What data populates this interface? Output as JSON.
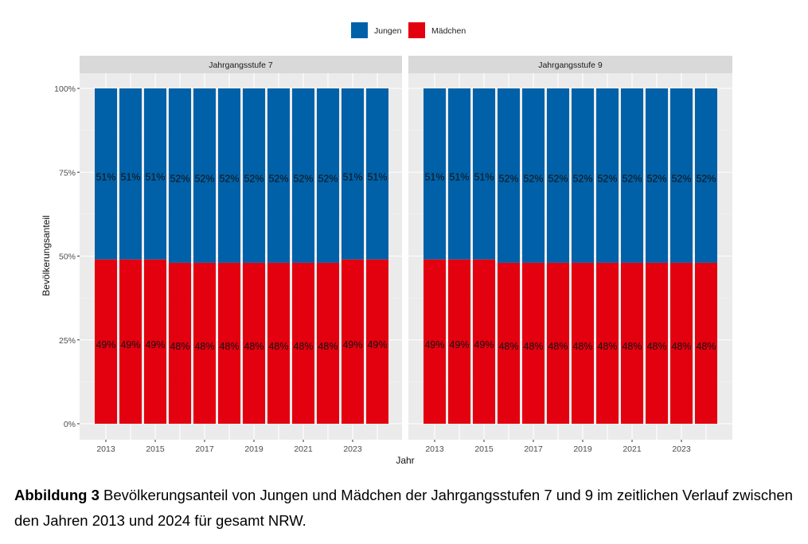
{
  "chart_data": {
    "type": "bar",
    "stacked": true,
    "xlabel": "Jahr",
    "ylabel": "Bevölkerungsanteil",
    "ylim": [
      0,
      100
    ],
    "yticks": [
      "0%",
      "25%",
      "50%",
      "75%",
      "100%"
    ],
    "xticks": [
      "2013",
      "2015",
      "2017",
      "2019",
      "2021",
      "2023"
    ],
    "categories": [
      2013,
      2014,
      2015,
      2016,
      2017,
      2018,
      2019,
      2020,
      2021,
      2022,
      2023,
      2024
    ],
    "legend": {
      "placement": "top",
      "entries": [
        {
          "name": "Jungen",
          "color": "#0061A8"
        },
        {
          "name": "Mädchen",
          "color": "#E3000F"
        }
      ]
    },
    "grid": true,
    "panels": [
      {
        "title": "Jahrgangsstufe 7",
        "series": [
          {
            "name": "Mädchen",
            "values": [
              49,
              49,
              49,
              48,
              48,
              48,
              48,
              48,
              48,
              48,
              49,
              49
            ],
            "labels": [
              "49%",
              "49%",
              "49%",
              "48%",
              "48%",
              "48%",
              "48%",
              "48%",
              "48%",
              "48%",
              "49%",
              "49%"
            ]
          },
          {
            "name": "Jungen",
            "values": [
              51,
              51,
              51,
              52,
              52,
              52,
              52,
              52,
              52,
              52,
              51,
              51
            ],
            "labels": [
              "51%",
              "51%",
              "51%",
              "52%",
              "52%",
              "52%",
              "52%",
              "52%",
              "52%",
              "52%",
              "51%",
              "51%"
            ]
          }
        ]
      },
      {
        "title": "Jahrgangsstufe 9",
        "series": [
          {
            "name": "Mädchen",
            "values": [
              49,
              49,
              49,
              48,
              48,
              48,
              48,
              48,
              48,
              48,
              48,
              48
            ],
            "labels": [
              "49%",
              "49%",
              "49%",
              "48%",
              "48%",
              "48%",
              "48%",
              "48%",
              "48%",
              "48%",
              "48%",
              "48%"
            ]
          },
          {
            "name": "Jungen",
            "values": [
              51,
              51,
              51,
              52,
              52,
              52,
              52,
              52,
              52,
              52,
              52,
              52
            ],
            "labels": [
              "51%",
              "51%",
              "51%",
              "52%",
              "52%",
              "52%",
              "52%",
              "52%",
              "52%",
              "52%",
              "52%",
              "52%"
            ]
          }
        ]
      }
    ]
  },
  "caption": {
    "label": "Abbildung 3",
    "text": " Bevölkerungsanteil von Jungen und Mädchen der Jahrgangsstufen 7 und 9 im zeitlichen Verlauf zwischen den Jahren 2013 und 2024 für gesamt NRW."
  }
}
